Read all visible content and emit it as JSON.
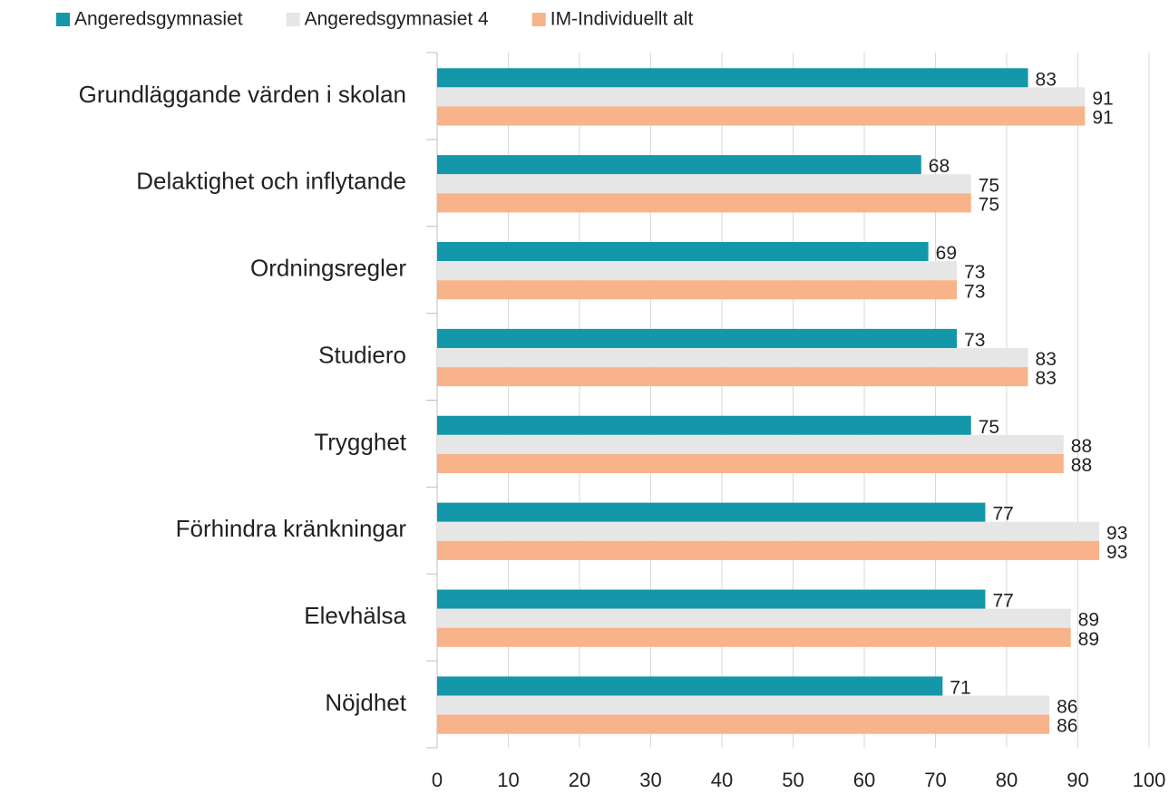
{
  "chart_data": {
    "type": "bar",
    "orientation": "horizontal",
    "categories": [
      "Grundläggande värden i skolan",
      "Delaktighet och inflytande",
      "Ordningsregler",
      "Studiero",
      "Trygghet",
      "Förhindra kränkningar",
      "Elevhälsa",
      "Nöjdhet"
    ],
    "series": [
      {
        "name": "Angeredsgymnasiet",
        "color": "#1497a8",
        "values": [
          83,
          68,
          69,
          73,
          75,
          77,
          77,
          71
        ]
      },
      {
        "name": "Angeredsgymnasiet 4",
        "color": "#e6e6e6",
        "values": [
          91,
          75,
          73,
          83,
          88,
          93,
          89,
          86
        ]
      },
      {
        "name": "IM-Individuellt alt",
        "color": "#f8b38a",
        "values": [
          91,
          75,
          73,
          83,
          88,
          93,
          89,
          86
        ]
      }
    ],
    "xlim": [
      0,
      100
    ],
    "xticks": [
      0,
      10,
      20,
      30,
      40,
      50,
      60,
      70,
      80,
      90,
      100
    ],
    "grid": true,
    "legend": "top"
  }
}
